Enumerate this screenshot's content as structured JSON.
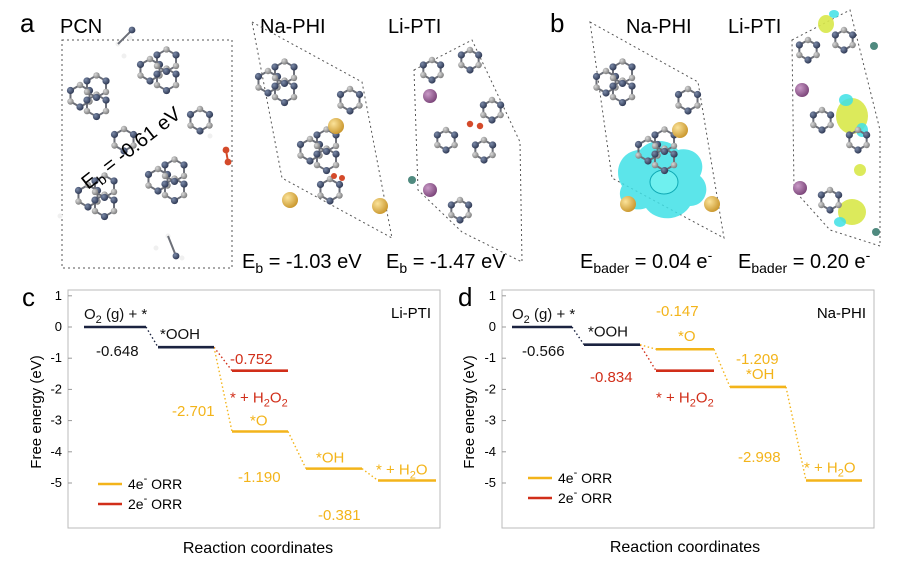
{
  "panels": {
    "a": {
      "letter": "a",
      "labels": [
        "PCN",
        "Na-PHI",
        "Li-PTI"
      ],
      "eb_prefix": "E",
      "eb_sub": "b",
      "eb_values": [
        " = -0.61 eV",
        " = -1.03 eV",
        " = -1.47 eV"
      ]
    },
    "b": {
      "letter": "b",
      "labels": [
        "Na-PHI",
        "Li-PTI"
      ],
      "eb_prefix": "E",
      "eb_sub": "bader",
      "eb_values": [
        " = 0.04 e",
        " = 0.20 e"
      ],
      "eb_sup": "-"
    }
  },
  "colors": {
    "four_e": "#f3b41a",
    "two_e": "#d12e19",
    "initial": "#1b2340",
    "frame": "#bbbbbb"
  },
  "chart_data": [
    {
      "type": "line",
      "panel": "c",
      "tag": "Li-PTI",
      "xlabel": "Reaction coordinates",
      "ylabel": "Free energy (eV)",
      "ylim": [
        -5.3,
        0.6
      ],
      "yticks": [
        1,
        0,
        -1,
        -2,
        -3,
        -4,
        -5
      ],
      "ytick_labels": [
        "1",
        "0",
        "-1",
        "-2",
        "-3",
        "-4",
        "-5"
      ],
      "legend": {
        "position": "bottom-left",
        "entries": [
          {
            "sup_text": "4e",
            "sup": "-",
            "rest": " ORR",
            "series": "4e"
          },
          {
            "sup_text": "2e",
            "sup": "-",
            "rest": " ORR",
            "series": "2e"
          }
        ]
      },
      "levels": [
        {
          "label_parts": [
            {
              "t": "O"
            },
            {
              "t": "2",
              "s": "sub"
            },
            {
              "t": " (g) + *"
            }
          ],
          "x": 0,
          "energy": 0.0,
          "series": "initial"
        },
        {
          "label_parts": [
            {
              "t": "*OOH"
            }
          ],
          "x": 1,
          "energy": -0.648,
          "series": "initial"
        },
        {
          "label_parts": [
            {
              "t": "* + H"
            },
            {
              "t": "2",
              "s": "sub"
            },
            {
              "t": "O"
            },
            {
              "t": "2",
              "s": "sub"
            }
          ],
          "x": 2,
          "energy": -1.4,
          "series": "2e"
        },
        {
          "label_parts": [
            {
              "t": "*O"
            }
          ],
          "x": 2,
          "energy": -3.349,
          "series": "4e"
        },
        {
          "label_parts": [
            {
              "t": "*OH"
            }
          ],
          "x": 3,
          "energy": -4.539,
          "series": "4e"
        },
        {
          "label_parts": [
            {
              "t": "* + H"
            },
            {
              "t": "2",
              "s": "sub"
            },
            {
              "t": "O"
            }
          ],
          "x": 4,
          "energy": -4.92,
          "series": "4e"
        }
      ],
      "steps": [
        {
          "text": "-0.648",
          "series": "initial"
        },
        {
          "text": "-0.752",
          "series": "2e"
        },
        {
          "text": "-2.701",
          "series": "4e"
        },
        {
          "text": "-1.190",
          "series": "4e"
        },
        {
          "text": "-0.381",
          "series": "4e"
        }
      ]
    },
    {
      "type": "line",
      "panel": "d",
      "tag": "Na-PHI",
      "xlabel": "Reaction coordinates",
      "ylabel": "Free energy (eV)",
      "ylim": [
        -5.3,
        0.6
      ],
      "yticks": [
        1,
        0,
        -1,
        -2,
        -3,
        -4,
        -5
      ],
      "ytick_labels": [
        "1",
        "0",
        "-1",
        "-2",
        "-3",
        "-4",
        "-5"
      ],
      "legend": {
        "position": "bottom-left",
        "entries": [
          {
            "sup_text": "4e",
            "sup": "-",
            "rest": " ORR",
            "series": "4e"
          },
          {
            "sup_text": "2e",
            "sup": "-",
            "rest": " ORR",
            "series": "2e"
          }
        ]
      },
      "levels": [
        {
          "label_parts": [
            {
              "t": "O"
            },
            {
              "t": "2",
              "s": "sub"
            },
            {
              "t": " (g) + *"
            }
          ],
          "x": 0,
          "energy": 0.0,
          "series": "initial"
        },
        {
          "label_parts": [
            {
              "t": "*OOH"
            }
          ],
          "x": 1,
          "energy": -0.566,
          "series": "initial"
        },
        {
          "label_parts": [
            {
              "t": "* + H"
            },
            {
              "t": "2",
              "s": "sub"
            },
            {
              "t": "O"
            },
            {
              "t": "2",
              "s": "sub"
            }
          ],
          "x": 2,
          "energy": -1.4,
          "series": "2e"
        },
        {
          "label_parts": [
            {
              "t": "*O"
            }
          ],
          "x": 2,
          "energy": -0.713,
          "series": "4e"
        },
        {
          "label_parts": [
            {
              "t": "*OH"
            }
          ],
          "x": 3,
          "energy": -1.922,
          "series": "4e"
        },
        {
          "label_parts": [
            {
              "t": "* + H"
            },
            {
              "t": "2",
              "s": "sub"
            },
            {
              "t": "O"
            }
          ],
          "x": 4,
          "energy": -4.92,
          "series": "4e"
        }
      ],
      "steps": [
        {
          "text": "-0.566",
          "series": "initial"
        },
        {
          "text": "-0.147",
          "series": "4e"
        },
        {
          "text": "-0.834",
          "series": "2e"
        },
        {
          "text": "-1.209",
          "series": "4e"
        },
        {
          "text": "-2.998",
          "series": "4e"
        }
      ]
    }
  ]
}
